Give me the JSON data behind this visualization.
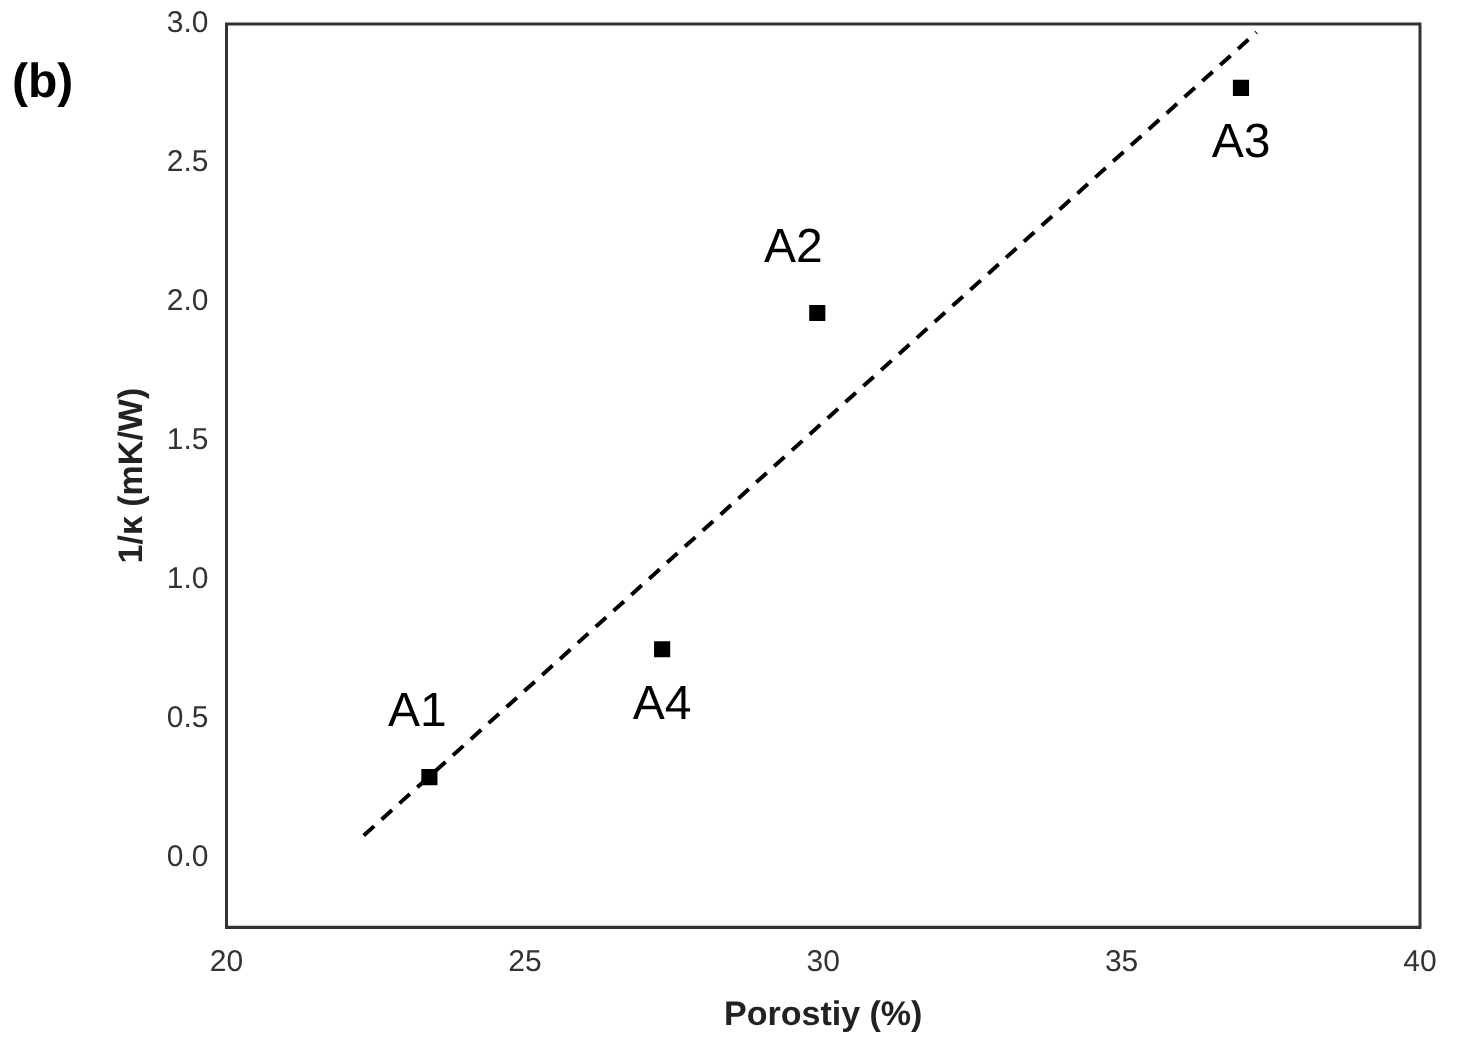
{
  "chart_data": {
    "type": "scatter",
    "title": "(b)",
    "xlabel": "Porostiy (%)",
    "ylabel": "1/κ (mK/W)",
    "series": [
      {
        "color": "#000000",
        "x": [
          23.4,
          29.9,
          37.0,
          27.3
        ],
        "values": [
          0.29,
          1.96,
          2.77,
          0.75
        ]
      },
      {
        "type": "line",
        "color": "#000000",
        "x": [
          22.3,
          37.26
        ],
        "values": [
          0.08,
          2.97
        ],
        "line_style": "dashed",
        "marker": "none"
      }
    ],
    "annotations": [
      {
        "text": "A1",
        "x": 23.4,
        "y": 0.29
      },
      {
        "text": "A2",
        "x": 29.9,
        "y": 1.96
      },
      {
        "text": "A3",
        "x": 37.0,
        "y": 2.77
      },
      {
        "text": "A4",
        "x": 27.3,
        "y": 0.75
      }
    ],
    "xlim": [
      20,
      40
    ],
    "ylim": [
      -0.25,
      3.0
    ],
    "xticks": [
      20,
      25,
      30,
      35,
      40
    ],
    "yticks": [
      {
        "value": 0,
        "label": "0.0"
      },
      0.5,
      {
        "value": 1,
        "label": "1.0"
      },
      1.5,
      {
        "value": 2,
        "label": "2.0"
      },
      2.5,
      {
        "value": 3,
        "label": "3.0"
      }
    ],
    "marker": "square",
    "grid": false
  }
}
